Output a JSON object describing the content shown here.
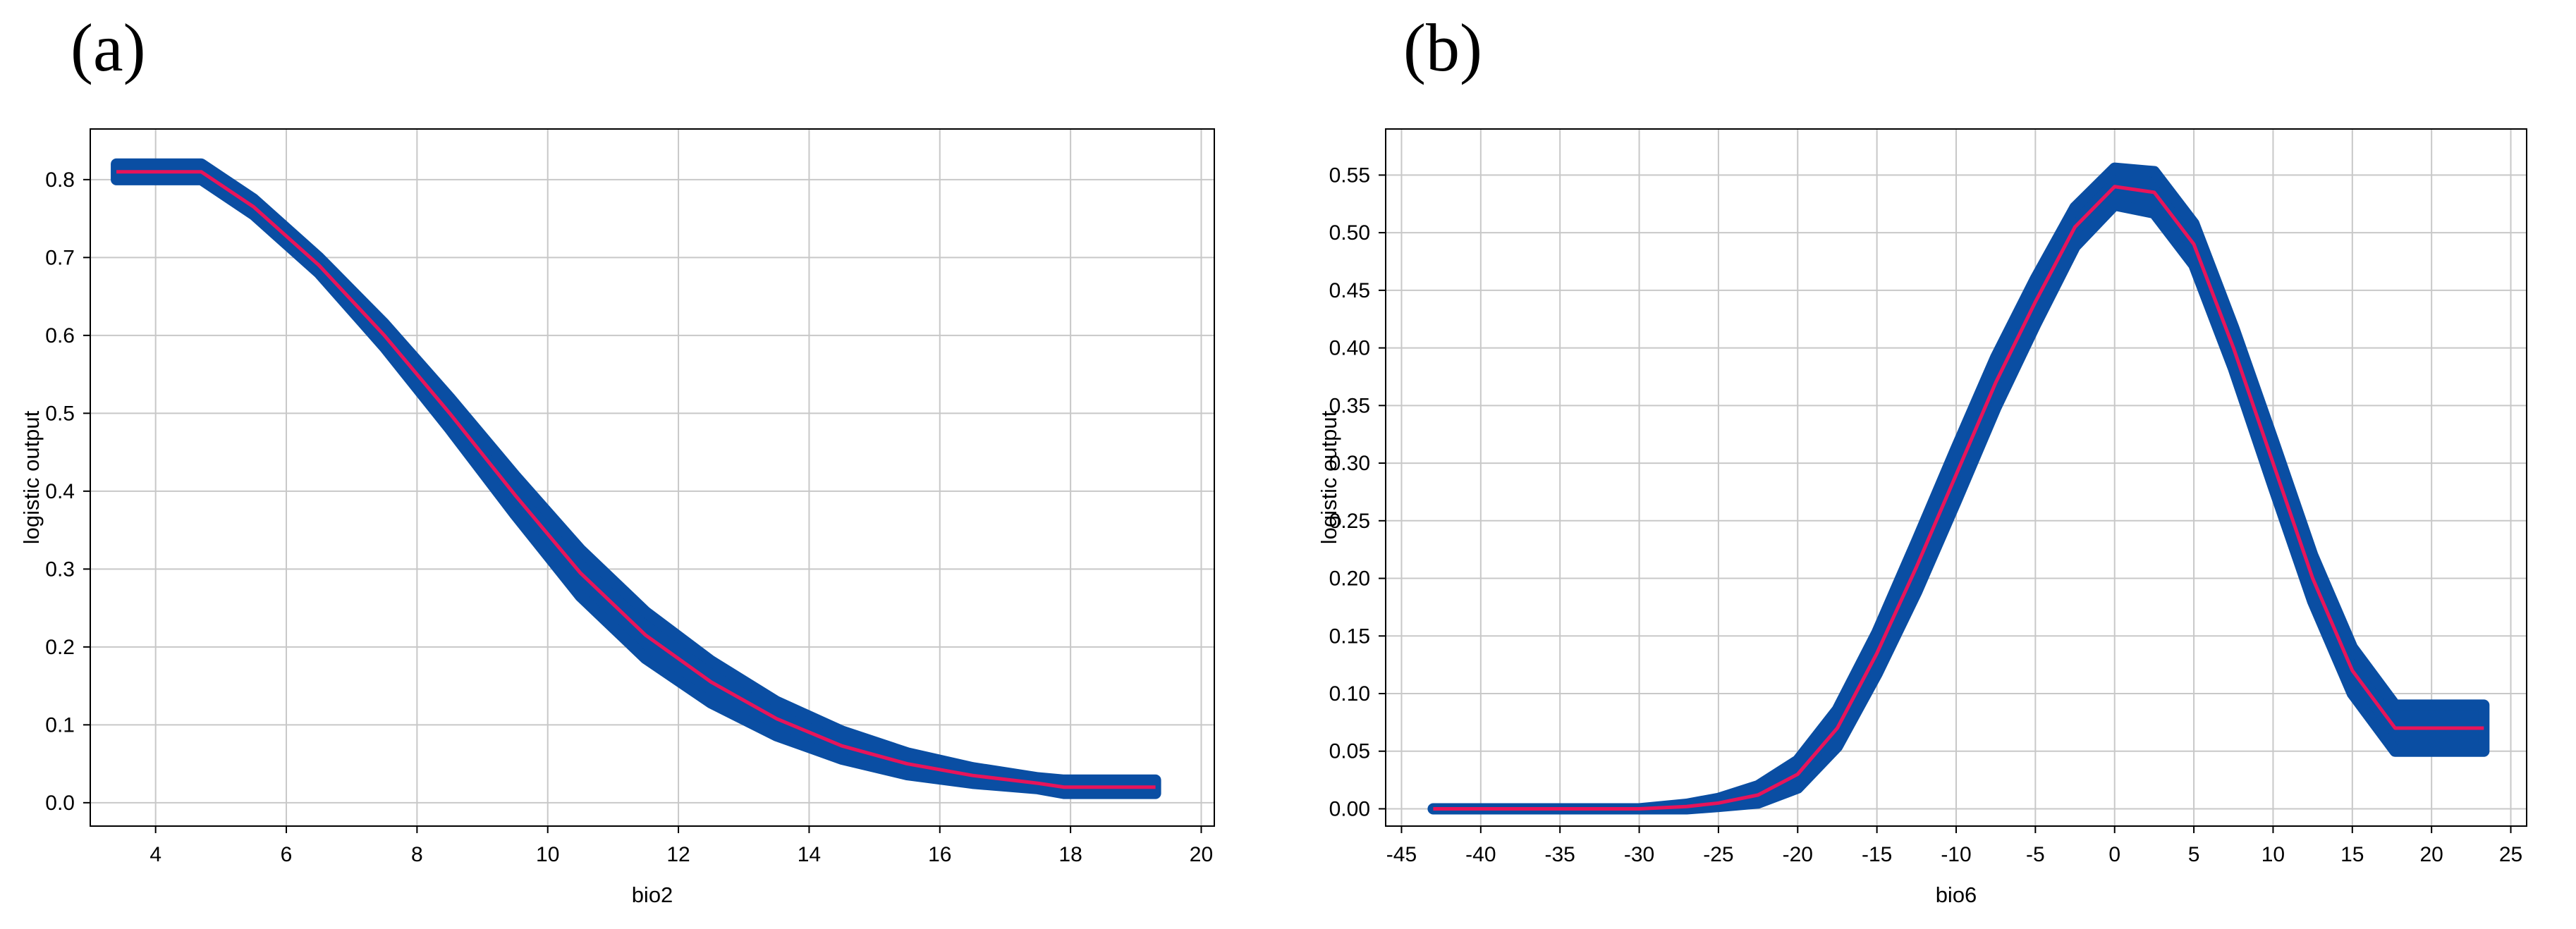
{
  "panels": {
    "a_label": "(a)",
    "b_label": "(b)"
  },
  "colors": {
    "band": "#0a4ea3",
    "mean_line": "#e8145a",
    "grid": "#c8c8c8",
    "frame": "#000000"
  },
  "chart_data": [
    {
      "type": "line",
      "panel": "(a)",
      "title": "",
      "xlabel": "bio2",
      "ylabel": "logistic output",
      "xlim": [
        3,
        20.2
      ],
      "ylim": [
        -0.03,
        0.865
      ],
      "xticks": [
        4,
        6,
        8,
        10,
        12,
        14,
        16,
        18,
        20
      ],
      "yticks": [
        0.0,
        0.1,
        0.2,
        0.3,
        0.4,
        0.5,
        0.6,
        0.7,
        0.8
      ],
      "ytick_labels": [
        "0.0",
        "0.1",
        "0.2",
        "0.3",
        "0.4",
        "0.5",
        "0.6",
        "0.7",
        "0.8"
      ],
      "grid": true,
      "series": [
        {
          "role": "mean",
          "x": [
            3.4,
            4.7,
            5.5,
            6.5,
            7.5,
            8.5,
            9.5,
            10.5,
            11.5,
            12.5,
            13.5,
            14.5,
            15.5,
            16.5,
            17.5,
            17.9,
            19.3
          ],
          "y": [
            0.81,
            0.81,
            0.765,
            0.69,
            0.6,
            0.5,
            0.395,
            0.295,
            0.215,
            0.155,
            0.108,
            0.073,
            0.05,
            0.035,
            0.025,
            0.02,
            0.02
          ]
        },
        {
          "role": "band",
          "x": [
            3.4,
            4.7,
            5.5,
            6.5,
            7.5,
            8.5,
            9.5,
            10.5,
            11.5,
            12.5,
            13.5,
            14.5,
            15.5,
            16.5,
            17.5,
            17.9,
            19.3
          ],
          "upper": [
            0.82,
            0.82,
            0.775,
            0.7,
            0.615,
            0.52,
            0.42,
            0.325,
            0.245,
            0.182,
            0.13,
            0.092,
            0.064,
            0.045,
            0.032,
            0.029,
            0.029
          ],
          "lower": [
            0.8,
            0.8,
            0.755,
            0.68,
            0.585,
            0.48,
            0.37,
            0.265,
            0.185,
            0.128,
            0.086,
            0.056,
            0.036,
            0.025,
            0.018,
            0.012,
            0.012
          ]
        }
      ]
    },
    {
      "type": "line",
      "panel": "(b)",
      "title": "",
      "xlabel": "bio6",
      "ylabel": "logistic output",
      "xlim": [
        -46,
        26
      ],
      "ylim": [
        -0.015,
        0.59
      ],
      "xticks": [
        -45,
        -40,
        -35,
        -30,
        -25,
        -20,
        -15,
        -10,
        -5,
        0,
        5,
        10,
        15,
        20,
        25
      ],
      "yticks": [
        0.0,
        0.05,
        0.1,
        0.15,
        0.2,
        0.25,
        0.3,
        0.35,
        0.4,
        0.45,
        0.5,
        0.55
      ],
      "ytick_labels": [
        "0.00",
        "0.05",
        "0.10",
        "0.15",
        "0.20",
        "0.25",
        "0.30",
        "0.35",
        "0.40",
        "0.45",
        "0.50",
        "0.55"
      ],
      "grid": true,
      "series": [
        {
          "role": "mean",
          "x": [
            -43,
            -35,
            -30,
            -27,
            -25,
            -22.5,
            -20,
            -17.5,
            -15,
            -12.5,
            -10,
            -7.5,
            -5,
            -2.5,
            0,
            2.5,
            5,
            7.5,
            10,
            12.5,
            15,
            17.7,
            23.3
          ],
          "y": [
            0.0,
            0.0,
            0.0,
            0.002,
            0.005,
            0.012,
            0.03,
            0.07,
            0.135,
            0.21,
            0.29,
            0.37,
            0.44,
            0.505,
            0.54,
            0.535,
            0.49,
            0.4,
            0.3,
            0.2,
            0.12,
            0.07,
            0.07
          ]
        },
        {
          "role": "band",
          "x": [
            -43,
            -35,
            -30,
            -27,
            -25,
            -22.5,
            -20,
            -17.5,
            -15,
            -12.5,
            -10,
            -7.5,
            -5,
            -2.5,
            0,
            2.5,
            5,
            7.5,
            10,
            12.5,
            15,
            17.7,
            23.3
          ],
          "upper": [
            0.0,
            0.0,
            0.0,
            0.004,
            0.009,
            0.02,
            0.042,
            0.086,
            0.153,
            0.232,
            0.313,
            0.392,
            0.46,
            0.522,
            0.556,
            0.553,
            0.508,
            0.418,
            0.32,
            0.22,
            0.14,
            0.09,
            0.09
          ],
          "lower": [
            0.0,
            0.0,
            0.0,
            0.0,
            0.002,
            0.005,
            0.018,
            0.054,
            0.117,
            0.188,
            0.267,
            0.348,
            0.42,
            0.488,
            0.524,
            0.517,
            0.472,
            0.382,
            0.28,
            0.18,
            0.1,
            0.05,
            0.05
          ]
        }
      ]
    }
  ]
}
